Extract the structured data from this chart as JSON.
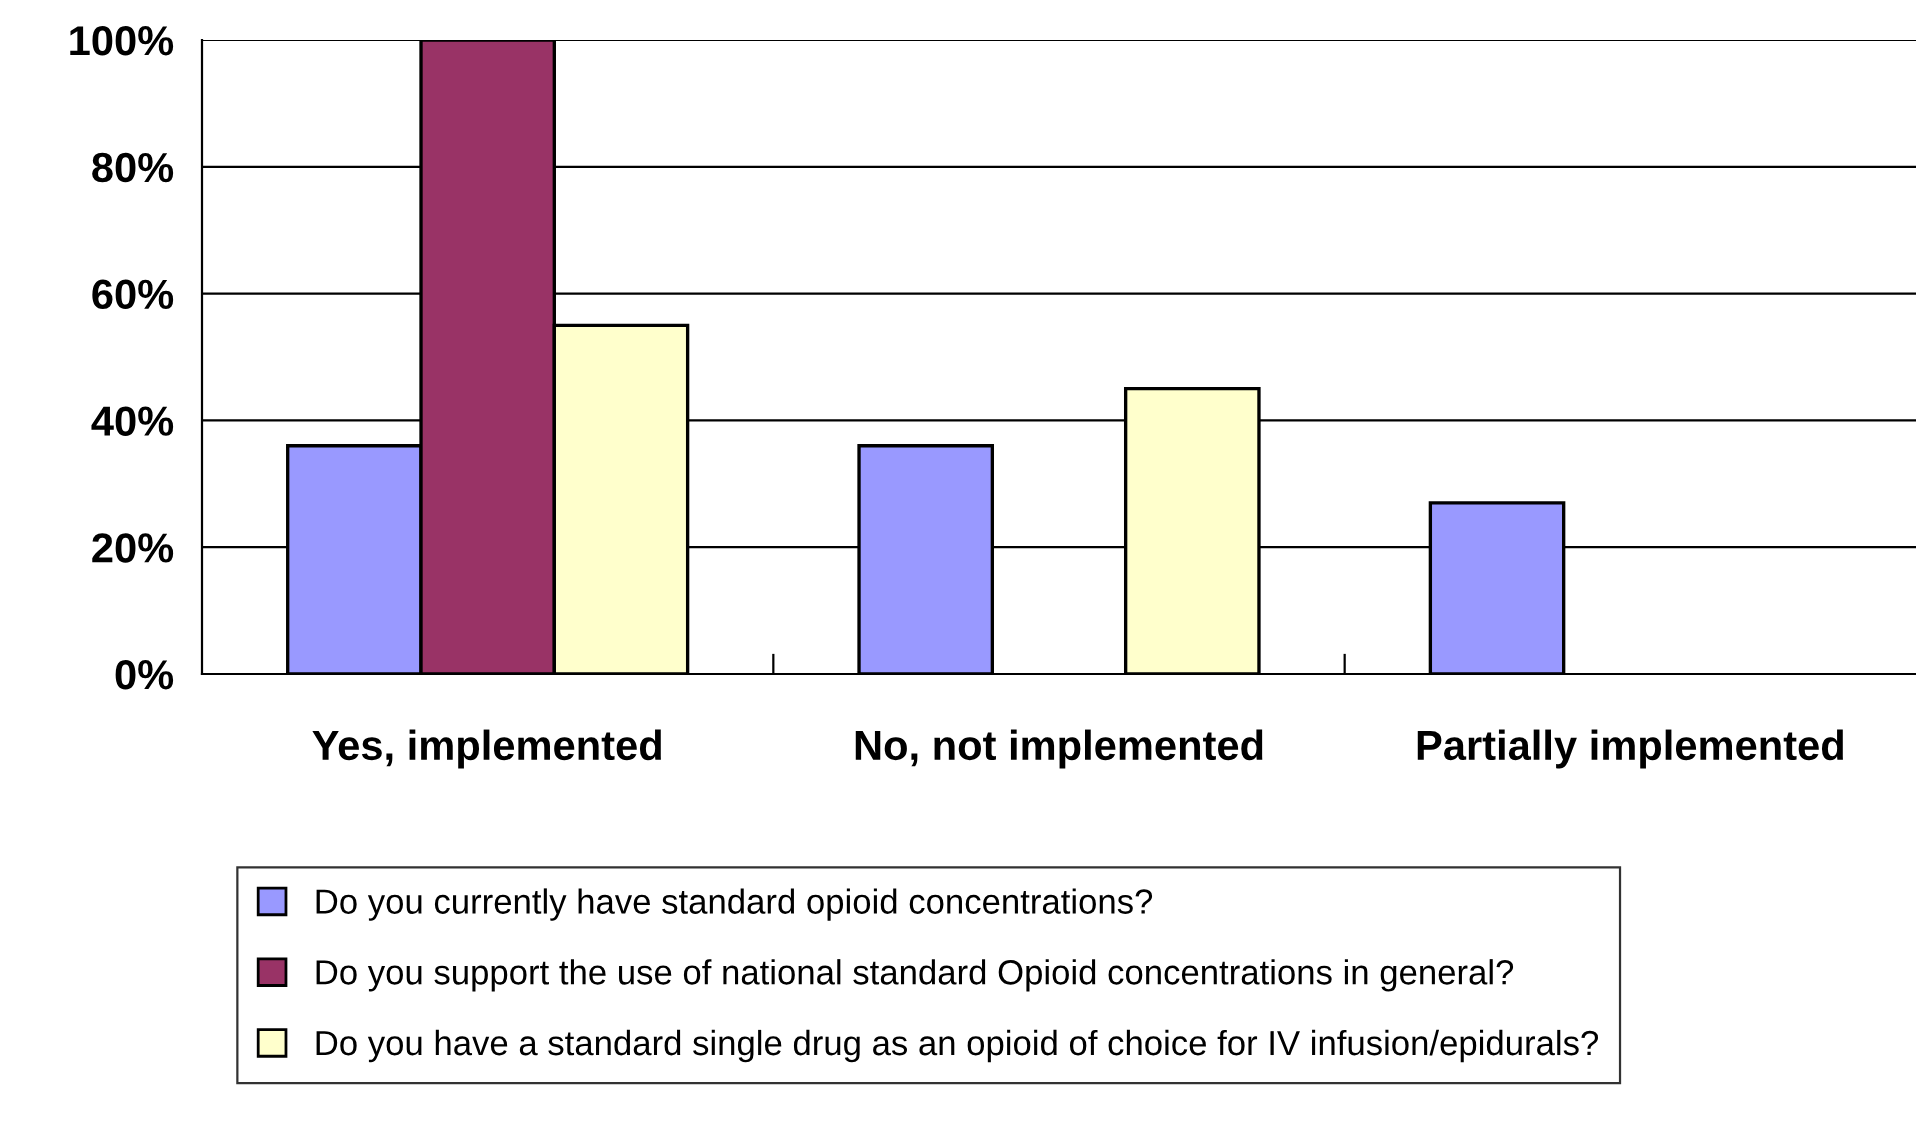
{
  "chart_data": {
    "type": "bar",
    "categories": [
      "Yes, implemented",
      "No, not implemented",
      "Partially implemented"
    ],
    "series": [
      {
        "name": "Do you currently have standard opioid concentrations?",
        "color": "#9999ff",
        "values": [
          36,
          36,
          27
        ]
      },
      {
        "name": "Do you support the use of national standard Opioid concentrations in general?",
        "color": "#993366",
        "values": [
          100,
          null,
          null
        ]
      },
      {
        "name": "Do you have a standard single drug as an opioid of choice for IV infusion/epidurals?",
        "color": "#ffffcc",
        "values": [
          55,
          45,
          null
        ]
      }
    ],
    "ylim": [
      0,
      100
    ],
    "yticks": [
      {
        "value": 0,
        "label": "0%"
      },
      {
        "value": 20,
        "label": "20%"
      },
      {
        "value": 40,
        "label": "40%"
      },
      {
        "value": 60,
        "label": "60%"
      },
      {
        "value": 80,
        "label": "80%"
      },
      {
        "value": 100,
        "label": "100%"
      }
    ],
    "grid": "y",
    "legend": "bottom"
  }
}
